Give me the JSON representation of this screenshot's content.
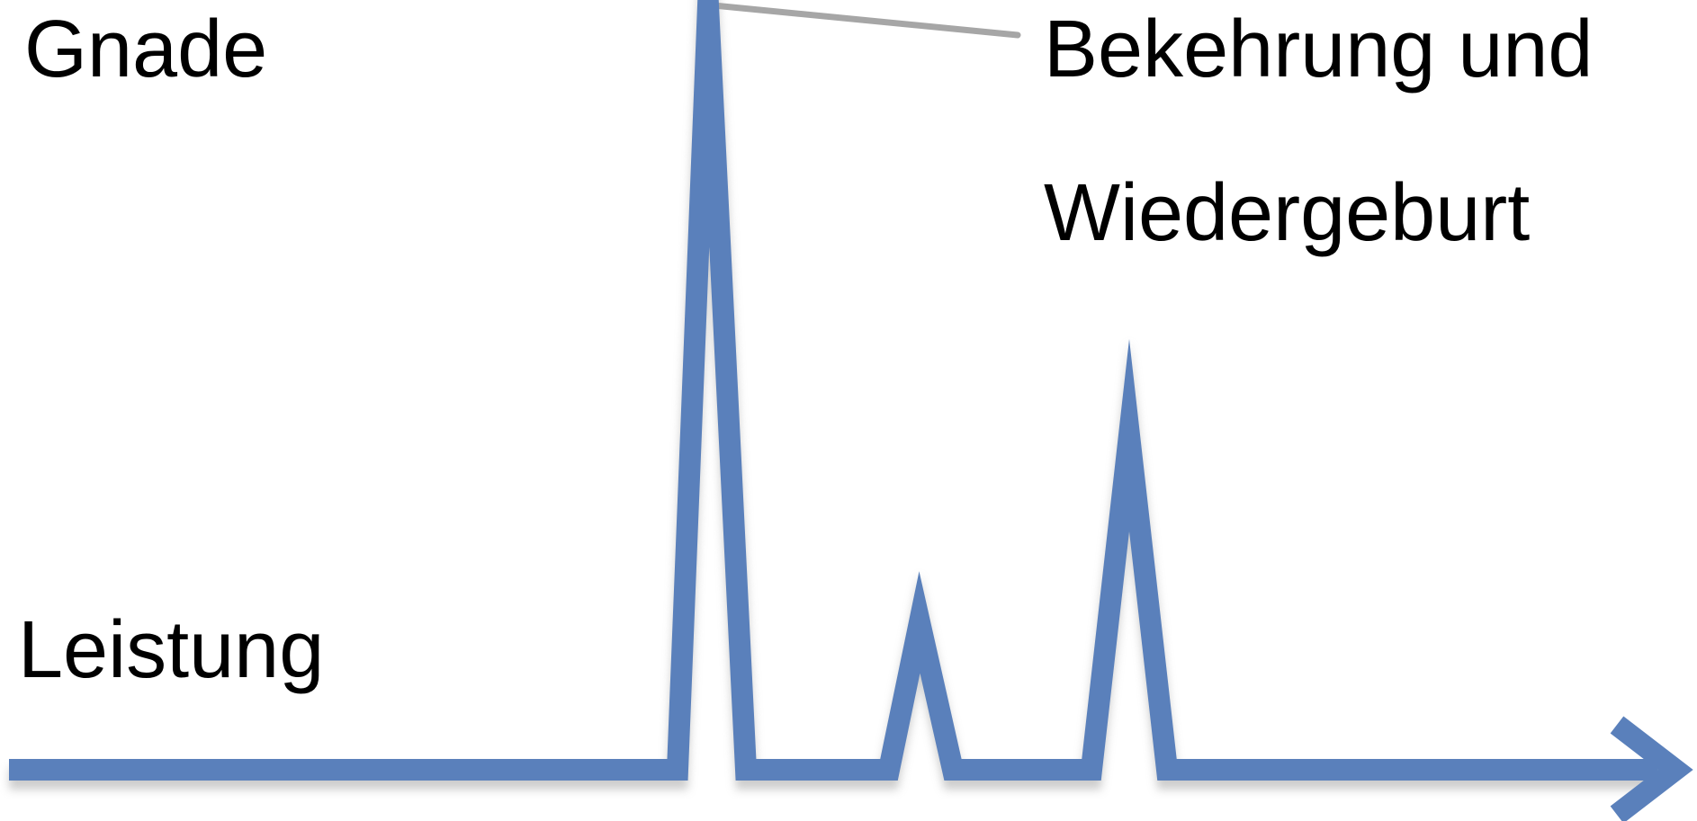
{
  "labels": {
    "top_left": "Gnade",
    "bottom_left": "Leistung",
    "right_line1": "Bekehrung und",
    "right_line2": "Wiedergeburt"
  },
  "colors": {
    "line": "#5a80bb",
    "shadow": "#c8c8c8",
    "connector": "#a6a6a6",
    "text": "#000000"
  },
  "icons": {
    "arrowhead": "arrow-right-icon"
  }
}
